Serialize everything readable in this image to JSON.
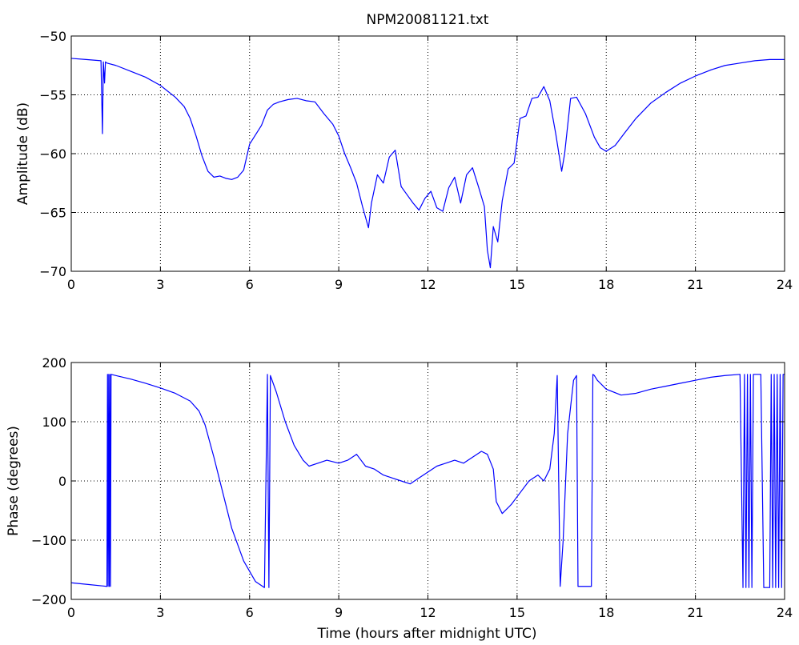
{
  "figure": {
    "title": "NPM20081121.txt"
  },
  "chart_data": [
    {
      "type": "line",
      "title": "NPM20081121.txt",
      "xlabel": "",
      "ylabel": "Amplitude (dB)",
      "xlim": [
        0,
        24
      ],
      "ylim": [
        -70,
        -50
      ],
      "xticks": [
        0,
        3,
        6,
        9,
        12,
        15,
        18,
        21,
        24
      ],
      "yticks": [
        -70,
        -65,
        -60,
        -55,
        -50
      ],
      "xtick_labels": [
        "0",
        "3",
        "6",
        "9",
        "12",
        "15",
        "18",
        "21",
        "24"
      ],
      "ytick_labels": [
        "−70",
        "−65",
        "−60",
        "−55",
        "−50"
      ],
      "grid": true,
      "line_color": "#0000ff",
      "series": [
        {
          "x": [
            0,
            0.5,
            1.0,
            1.05,
            1.08,
            1.12,
            1.15,
            1.2,
            1.5,
            2.0,
            2.5,
            3.0,
            3.5,
            3.8,
            4.0,
            4.2,
            4.4,
            4.6,
            4.8,
            5.0,
            5.2,
            5.4,
            5.6,
            5.8,
            6.0,
            6.2,
            6.4,
            6.6,
            6.8,
            7.0,
            7.3,
            7.6,
            7.9,
            8.2,
            8.5,
            8.8,
            9.0,
            9.2,
            9.4,
            9.6,
            9.8,
            10.0,
            10.1,
            10.3,
            10.5,
            10.7,
            10.9,
            11.1,
            11.3,
            11.5,
            11.7,
            11.9,
            12.1,
            12.3,
            12.5,
            12.7,
            12.9,
            13.1,
            13.3,
            13.5,
            13.7,
            13.9,
            14.0,
            14.1,
            14.2,
            14.35,
            14.5,
            14.7,
            14.9,
            15.1,
            15.3,
            15.5,
            15.7,
            15.9,
            16.1,
            16.3,
            16.5,
            16.6,
            16.8,
            17.0,
            17.3,
            17.6,
            17.8,
            18.0,
            18.3,
            18.6,
            19.0,
            19.5,
            20.0,
            20.5,
            21.0,
            21.5,
            22.0,
            22.5,
            23.0,
            23.5,
            24.0
          ],
          "values": [
            -51.9,
            -52.0,
            -52.1,
            -58.3,
            -52.2,
            -54.0,
            -52.2,
            -52.3,
            -52.5,
            -53.0,
            -53.5,
            -54.2,
            -55.2,
            -56.0,
            -57.0,
            -58.5,
            -60.2,
            -61.5,
            -62.0,
            -61.9,
            -62.1,
            -62.2,
            -62.0,
            -61.4,
            -59.2,
            -58.4,
            -57.6,
            -56.3,
            -55.8,
            -55.6,
            -55.4,
            -55.3,
            -55.5,
            -55.6,
            -56.6,
            -57.5,
            -58.5,
            -60.0,
            -61.2,
            -62.5,
            -64.5,
            -66.3,
            -64.2,
            -61.8,
            -62.5,
            -60.3,
            -59.7,
            -62.8,
            -63.5,
            -64.2,
            -64.8,
            -63.8,
            -63.2,
            -64.6,
            -64.9,
            -62.9,
            -62.0,
            -64.2,
            -61.8,
            -61.2,
            -62.8,
            -64.5,
            -68.2,
            -69.7,
            -66.2,
            -67.5,
            -64.0,
            -61.3,
            -60.8,
            -57.0,
            -56.8,
            -55.3,
            -55.2,
            -54.3,
            -55.5,
            -58.3,
            -61.5,
            -60.0,
            -55.3,
            -55.2,
            -56.6,
            -58.6,
            -59.5,
            -59.8,
            -59.3,
            -58.3,
            -57.0,
            -55.7,
            -54.8,
            -54.0,
            -53.4,
            -52.9,
            -52.5,
            -52.3,
            -52.1,
            -52.0,
            -52.0
          ]
        }
      ]
    },
    {
      "type": "line",
      "title": "",
      "xlabel": "Time (hours after midnight UTC)",
      "ylabel": "Phase (degrees)",
      "xlim": [
        0,
        24
      ],
      "ylim": [
        -200,
        200
      ],
      "xticks": [
        0,
        3,
        6,
        9,
        12,
        15,
        18,
        21,
        24
      ],
      "yticks": [
        -200,
        -100,
        0,
        100,
        200
      ],
      "xtick_labels": [
        "0",
        "3",
        "6",
        "9",
        "12",
        "15",
        "18",
        "21",
        "24"
      ],
      "ytick_labels": [
        "−200",
        "−100",
        "0",
        "100",
        "200"
      ],
      "grid": true,
      "line_color": "#0000ff",
      "series": [
        {
          "x": [
            0,
            0.6,
            1.2,
            1.22,
            1.24,
            1.26,
            1.28,
            1.3,
            1.32,
            1.34,
            1.5,
            2.0,
            2.5,
            3.0,
            3.5,
            4.0,
            4.3,
            4.5,
            4.8,
            5.1,
            5.4,
            5.8,
            6.2,
            6.5,
            6.6,
            6.65,
            6.7,
            6.9,
            7.2,
            7.5,
            7.8,
            8.0,
            8.3,
            8.6,
            9.0,
            9.3,
            9.6,
            9.9,
            10.2,
            10.5,
            10.8,
            11.1,
            11.4,
            11.7,
            12.0,
            12.3,
            12.6,
            12.9,
            13.2,
            13.5,
            13.8,
            14.0,
            14.2,
            14.3,
            14.5,
            14.8,
            15.1,
            15.4,
            15.7,
            15.9,
            16.1,
            16.25,
            16.35,
            16.45,
            16.55,
            16.7,
            16.9,
            17.0,
            17.05,
            17.1,
            17.2,
            17.5,
            17.55,
            17.6,
            17.7,
            18.0,
            18.5,
            19.0,
            19.5,
            20.0,
            20.5,
            21.0,
            21.5,
            22.0,
            22.5,
            22.6,
            22.65,
            22.7,
            22.75,
            22.8,
            22.85,
            22.9,
            22.95,
            23.0,
            23.2,
            23.3,
            23.35,
            23.5,
            23.55,
            23.6,
            23.65,
            23.7,
            23.75,
            23.8,
            23.85,
            23.9,
            23.95,
            24.0
          ],
          "values": [
            -172,
            -175,
            -178,
            180,
            -178,
            180,
            -178,
            180,
            -178,
            180,
            178,
            172,
            165,
            157,
            148,
            135,
            118,
            95,
            40,
            -20,
            -80,
            -135,
            -170,
            -180,
            180,
            -180,
            178,
            150,
            100,
            60,
            35,
            25,
            30,
            35,
            30,
            35,
            45,
            25,
            20,
            10,
            5,
            0,
            -5,
            5,
            15,
            25,
            30,
            35,
            30,
            40,
            50,
            45,
            20,
            -35,
            -55,
            -40,
            -20,
            0,
            10,
            0,
            20,
            80,
            178,
            -178,
            -100,
            80,
            170,
            178,
            -178,
            -178,
            -178,
            -178,
            180,
            178,
            170,
            155,
            145,
            148,
            155,
            160,
            165,
            170,
            175,
            178,
            180,
            -180,
            180,
            -180,
            180,
            -180,
            180,
            -180,
            180,
            180,
            180,
            -180,
            -180,
            -180,
            180,
            -180,
            180,
            -180,
            180,
            -180,
            180,
            -180,
            180,
            180
          ]
        }
      ]
    }
  ]
}
